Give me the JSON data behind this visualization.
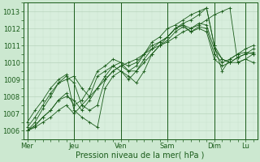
{
  "background_color": "#cce8d0",
  "plot_bg_color": "#d8eedd",
  "line_color": "#1a5c1a",
  "grid_color_major": "#b8d4bc",
  "grid_color_minor": "#c8e0cc",
  "title": "Pression niveau de la mer( hPa )",
  "ylabel_ticks": [
    1006,
    1007,
    1008,
    1009,
    1010,
    1011,
    1012,
    1013
  ],
  "ylim": [
    1005.5,
    1013.5
  ],
  "day_labels": [
    "Mer",
    "Jeu",
    "Ven",
    "Sam",
    "Dim",
    "Lu"
  ],
  "day_positions": [
    0,
    24,
    48,
    72,
    96,
    112
  ],
  "xlim": [
    -2,
    118
  ],
  "series": [
    [
      0,
      1006.0,
      4,
      1006.3,
      8,
      1006.8,
      12,
      1007.2,
      16,
      1007.8,
      20,
      1008.2,
      24,
      1007.5,
      28,
      1007.8,
      32,
      1008.5,
      36,
      1009.5,
      40,
      1009.8,
      44,
      1010.2,
      48,
      1010.0,
      52,
      1009.5,
      56,
      1009.8,
      60,
      1010.5,
      64,
      1011.0,
      68,
      1011.2,
      72,
      1011.5,
      76,
      1012.0,
      80,
      1012.2,
      84,
      1011.8,
      88,
      1012.1,
      92,
      1012.0,
      96,
      1010.5,
      100,
      1010.0,
      104,
      1010.2,
      108,
      1010.5,
      112,
      1010.8,
      116,
      1011.0
    ],
    [
      0,
      1006.0,
      4,
      1006.5,
      8,
      1007.3,
      12,
      1008.0,
      16,
      1008.8,
      20,
      1009.0,
      24,
      1009.2,
      28,
      1008.5,
      32,
      1008.0,
      36,
      1009.2,
      40,
      1009.5,
      44,
      1009.8,
      48,
      1009.5,
      52,
      1009.0,
      56,
      1009.5,
      60,
      1010.0,
      64,
      1010.5,
      68,
      1011.0,
      72,
      1011.3,
      76,
      1011.8,
      80,
      1012.1,
      84,
      1011.8,
      88,
      1012.0,
      92,
      1011.8,
      96,
      1010.2,
      100,
      1009.8,
      104,
      1010.0,
      108,
      1010.3,
      112,
      1010.5,
      116,
      1010.8
    ],
    [
      0,
      1006.2,
      4,
      1006.8,
      8,
      1007.5,
      12,
      1008.2,
      16,
      1008.8,
      20,
      1009.2,
      24,
      1008.8,
      28,
      1007.5,
      32,
      1007.2,
      36,
      1007.5,
      40,
      1009.0,
      44,
      1009.5,
      48,
      1009.8,
      52,
      1009.5,
      56,
      1009.5,
      60,
      1010.2,
      64,
      1010.8,
      68,
      1011.2,
      72,
      1011.5,
      76,
      1012.0,
      80,
      1012.2,
      84,
      1012.0,
      88,
      1012.3,
      92,
      1012.2,
      96,
      1010.8,
      100,
      1010.2,
      104,
      1010.0,
      108,
      1010.3,
      112,
      1010.5,
      116,
      1010.6
    ],
    [
      0,
      1006.5,
      4,
      1007.2,
      8,
      1007.8,
      12,
      1008.5,
      16,
      1009.0,
      20,
      1009.3,
      24,
      1007.2,
      28,
      1006.8,
      32,
      1006.5,
      36,
      1006.2,
      40,
      1008.5,
      44,
      1009.2,
      48,
      1009.5,
      52,
      1009.2,
      56,
      1008.8,
      60,
      1009.5,
      64,
      1010.5,
      68,
      1011.0,
      72,
      1011.5,
      76,
      1012.0,
      80,
      1012.3,
      84,
      1012.5,
      88,
      1012.8,
      92,
      1013.2,
      96,
      1011.0,
      100,
      1009.5,
      104,
      1010.2,
      108,
      1010.5,
      112,
      1010.6,
      116,
      1010.5
    ],
    [
      0,
      1006.0,
      4,
      1006.3,
      8,
      1006.8,
      12,
      1007.2,
      16,
      1007.8,
      20,
      1008.0,
      24,
      1007.8,
      28,
      1007.2,
      32,
      1007.8,
      36,
      1008.5,
      40,
      1009.2,
      44,
      1009.8,
      48,
      1010.0,
      52,
      1009.8,
      56,
      1010.0,
      60,
      1010.5,
      64,
      1011.2,
      68,
      1011.5,
      72,
      1012.0,
      76,
      1012.2,
      80,
      1012.5,
      84,
      1012.8,
      88,
      1013.0,
      92,
      1013.2,
      96,
      1011.0,
      100,
      1010.2,
      104,
      1010.0,
      108,
      1010.0,
      112,
      1010.2,
      116,
      1010.0
    ],
    [
      0,
      1006.0,
      4,
      1006.2,
      8,
      1006.5,
      12,
      1006.8,
      16,
      1007.2,
      20,
      1007.5,
      24,
      1007.0,
      28,
      1007.5,
      32,
      1008.0,
      36,
      1008.5,
      40,
      1009.0,
      44,
      1009.5,
      48,
      1009.8,
      52,
      1010.0,
      56,
      1010.2,
      60,
      1010.5,
      64,
      1010.8,
      68,
      1011.0,
      72,
      1011.2,
      76,
      1011.5,
      80,
      1011.8,
      84,
      1012.0,
      88,
      1012.2,
      92,
      1012.5,
      96,
      1012.8,
      100,
      1013.0,
      104,
      1013.2,
      108,
      1010.0,
      112,
      1010.2,
      116,
      1010.5
    ]
  ],
  "tick_fontsize": 6,
  "xlabel_fontsize": 7,
  "linewidth": 0.6,
  "markersize": 2.5,
  "markeredgewidth": 0.6
}
